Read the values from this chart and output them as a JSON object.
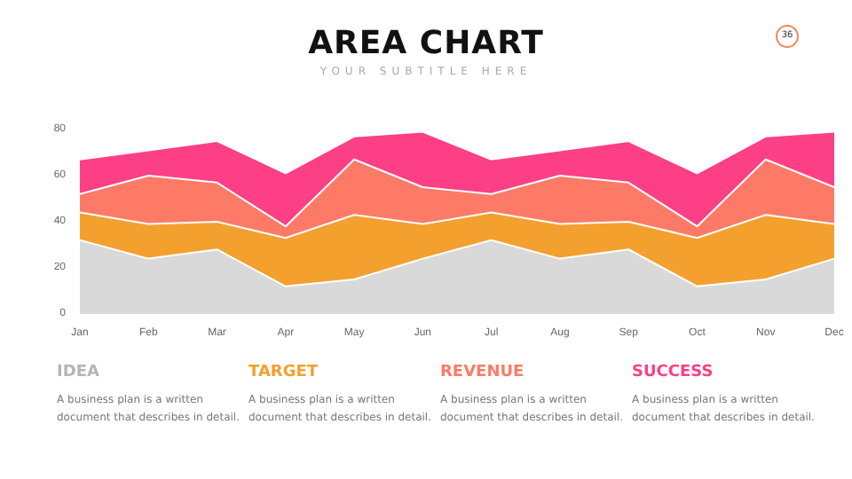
{
  "chart_data": {
    "type": "area",
    "title": "AREA CHART",
    "subtitle": "YOUR SUBTITLE HERE",
    "categories": [
      "Jan",
      "Feb",
      "Mar",
      "Apr",
      "May",
      "Jun",
      "Jul",
      "Aug",
      "Sep",
      "Oct",
      "Nov",
      "Dec"
    ],
    "stacked": true,
    "series": [
      {
        "name": "IDEA",
        "color": "#d9d9d9",
        "values": [
          32,
          24,
          28,
          12,
          15,
          24,
          32,
          24,
          28,
          12,
          15,
          24
        ]
      },
      {
        "name": "TARGET",
        "color": "#f4a02e",
        "values": [
          12,
          15,
          12,
          21,
          28,
          15,
          12,
          15,
          12,
          21,
          28,
          15
        ]
      },
      {
        "name": "REVENUE",
        "color": "#fd7b66",
        "values": [
          8,
          21,
          17,
          5,
          24,
          16,
          8,
          21,
          17,
          5,
          24,
          16
        ]
      },
      {
        "name": "SUCCESS",
        "color": "#fd3f85",
        "values": [
          15,
          11,
          18,
          23,
          10,
          24,
          15,
          11,
          18,
          23,
          10,
          24
        ]
      }
    ],
    "ylim": [
      0,
      80
    ],
    "yticks": [
      0,
      20,
      40,
      60,
      80
    ],
    "grid": false,
    "legend": "bottom",
    "annotations": [
      "A business plan is a written document that describes in detail.",
      "A business plan is a written document that describes in detail.",
      "A business plan is a written document that describes in detail.",
      "A business plan is a written document that describes in detail.",
      "36"
    ]
  }
}
